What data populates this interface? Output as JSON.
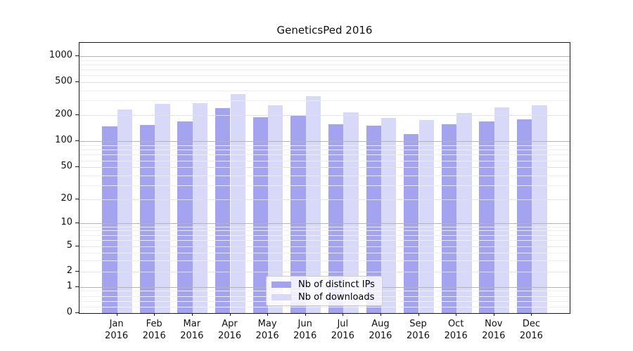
{
  "title": "GeneticsPed 2016",
  "legend": {
    "items": [
      {
        "label": "Nb of distinct IPs",
        "color": "#a3a3f0"
      },
      {
        "label": "Nb of downloads",
        "color": "#d8d8f8"
      }
    ]
  },
  "colors": {
    "distinct_ips_bar": "#a3a3f0",
    "downloads_bar": "#d8d8f8",
    "decade_gridline": "#b4b4b4",
    "labeled_gridline": "#e2e2e2",
    "minor_gridline": "#eeeeee",
    "axis": "#1a1a1a"
  },
  "chart_data": {
    "type": "bar",
    "title": "GeneticsPed 2016",
    "months": [
      "Jan",
      "Feb",
      "Mar",
      "Apr",
      "May",
      "Jun",
      "Jul",
      "Aug",
      "Sep",
      "Oct",
      "Nov",
      "Dec"
    ],
    "year": "2016",
    "series": [
      {
        "name": "Nb of distinct IPs",
        "values": [
          148,
          155,
          171,
          246,
          190,
          200,
          157,
          152,
          121,
          157,
          171,
          180
        ]
      },
      {
        "name": "Nb of downloads",
        "values": [
          236,
          276,
          281,
          358,
          264,
          341,
          217,
          187,
          178,
          213,
          250,
          262
        ]
      }
    ],
    "yscale": "log-like (0,1,2,5,10,20,50,100,200,500,1000)",
    "y_ticks": [
      0,
      1,
      2,
      5,
      10,
      20,
      50,
      100,
      200,
      500,
      1000
    ],
    "ylim": [
      0,
      1400
    ],
    "grid": true,
    "legend_position": "lower center"
  }
}
